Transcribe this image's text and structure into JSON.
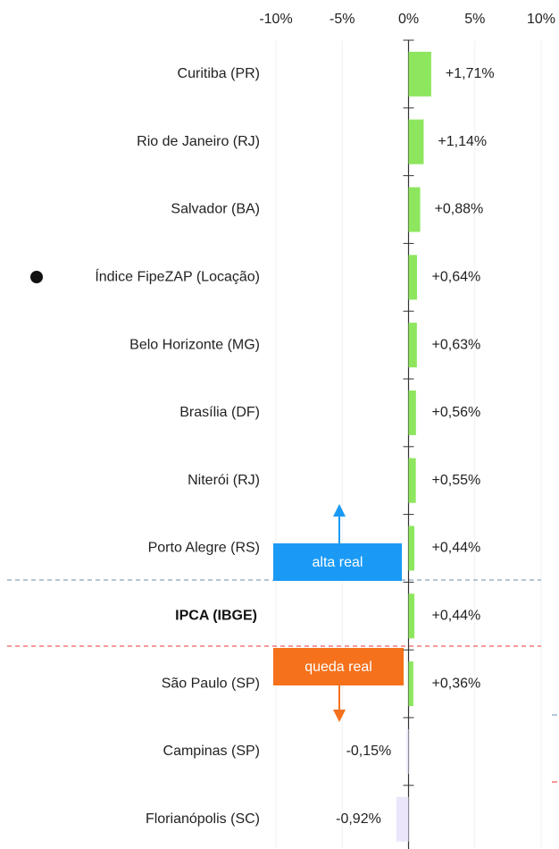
{
  "chart_data": {
    "type": "bar",
    "orientation": "horizontal",
    "categories": [
      "Curitiba (PR)",
      "Rio de Janeiro (RJ)",
      "Salvador (BA)",
      "Índice FipeZAP (Locação)",
      "Belo Horizonte (MG)",
      "Brasília (DF)",
      "Niterói (RJ)",
      "Porto Alegre (RS)",
      "IPCA (IBGE)",
      "São Paulo (SP)",
      "Campinas (SP)",
      "Florianópolis (SC)"
    ],
    "values": [
      1.71,
      1.14,
      0.88,
      0.64,
      0.63,
      0.56,
      0.55,
      0.44,
      0.44,
      0.36,
      -0.15,
      -0.92
    ],
    "value_labels": [
      "+1,71%",
      "+1,14%",
      "+0,88%",
      "+0,64%",
      "+0,63%",
      "+0,56%",
      "+0,55%",
      "+0,44%",
      "+0,44%",
      "+0,36%",
      "-0,15%",
      "-0,92%"
    ],
    "color": "#8ee65e",
    "negative_color": "#ece6fa",
    "xlim": [
      -10,
      10
    ],
    "xticks": [
      {
        "value": -10,
        "label": "-10%"
      },
      {
        "value": -5,
        "label": "-5%"
      },
      {
        "value": 0,
        "label": "0%"
      },
      {
        "value": 5,
        "label": "5%"
      },
      {
        "value": 10,
        "label": "10%"
      }
    ],
    "grid": true,
    "annotations": [
      "alta real",
      "queda real"
    ]
  }
}
